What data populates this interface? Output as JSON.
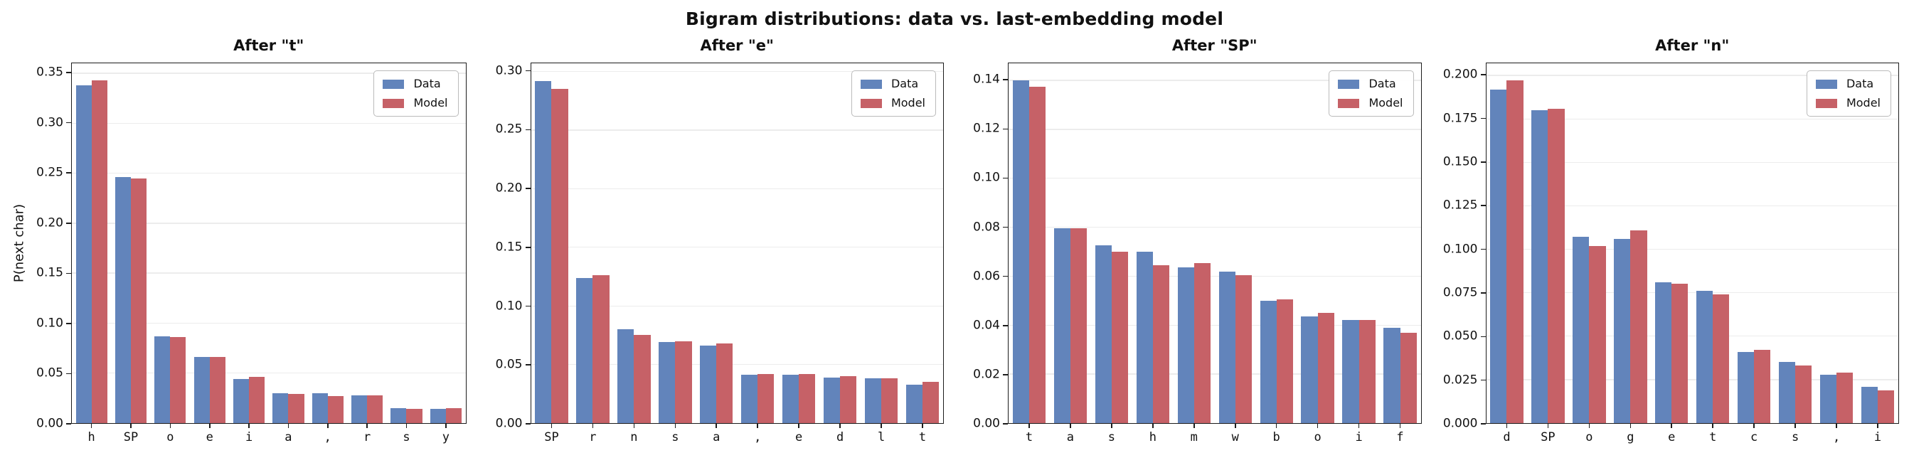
{
  "figure": {
    "title": "Bigram distributions: data vs. last-embedding model"
  },
  "colors": {
    "data_series": "#6284BB",
    "model_series": "#C66167",
    "gridline": "#ececec",
    "axis": "#1c1c1c"
  },
  "legend": {
    "items": [
      "Data",
      "Model"
    ]
  },
  "chart_data": [
    {
      "type": "bar",
      "title": "After \"t\"",
      "ylabel": "P(next char)",
      "grid": true,
      "legend_position": "upper right",
      "categories": [
        "h",
        "SP",
        "o",
        "e",
        "i",
        "a",
        ",",
        "r",
        "s",
        "y"
      ],
      "series": [
        {
          "name": "Data",
          "values": [
            0.338,
            0.246,
            0.087,
            0.066,
            0.044,
            0.03,
            0.03,
            0.028,
            0.015,
            0.014
          ]
        },
        {
          "name": "Model",
          "values": [
            0.343,
            0.245,
            0.086,
            0.066,
            0.046,
            0.029,
            0.027,
            0.028,
            0.014,
            0.015
          ]
        }
      ],
      "ylim": [
        0,
        0.36
      ],
      "ytick_labels": [
        "0.00",
        "0.05",
        "0.10",
        "0.15",
        "0.20",
        "0.25",
        "0.30",
        "0.35"
      ]
    },
    {
      "type": "bar",
      "title": "After \"e\"",
      "ylabel": "",
      "grid": true,
      "legend_position": "upper right",
      "categories": [
        "SP",
        "r",
        "n",
        "s",
        "a",
        ",",
        "e",
        "d",
        "l",
        "t"
      ],
      "series": [
        {
          "name": "Data",
          "values": [
            0.292,
            0.124,
            0.08,
            0.069,
            0.066,
            0.041,
            0.041,
            0.039,
            0.038,
            0.033
          ]
        },
        {
          "name": "Model",
          "values": [
            0.285,
            0.126,
            0.075,
            0.07,
            0.068,
            0.042,
            0.042,
            0.04,
            0.038,
            0.035
          ]
        }
      ],
      "ylim": [
        0,
        0.307
      ],
      "ytick_labels": [
        "0.00",
        "0.05",
        "0.10",
        "0.15",
        "0.20",
        "0.25",
        "0.30"
      ]
    },
    {
      "type": "bar",
      "title": "After \"SP\"",
      "ylabel": "",
      "grid": true,
      "legend_position": "upper right",
      "categories": [
        "t",
        "a",
        "s",
        "h",
        "m",
        "w",
        "b",
        "o",
        "i",
        "f"
      ],
      "series": [
        {
          "name": "Data",
          "values": [
            0.14,
            0.0795,
            0.0725,
            0.07,
            0.0635,
            0.062,
            0.05,
            0.0435,
            0.042,
            0.039
          ]
        },
        {
          "name": "Model",
          "values": [
            0.1375,
            0.0795,
            0.07,
            0.0645,
            0.0655,
            0.0605,
            0.0505,
            0.045,
            0.042,
            0.037
          ]
        }
      ],
      "ylim": [
        0,
        0.147
      ],
      "ytick_labels": [
        "0.00",
        "0.02",
        "0.04",
        "0.06",
        "0.08",
        "0.10",
        "0.12",
        "0.14"
      ]
    },
    {
      "type": "bar",
      "title": "After \"n\"",
      "ylabel": "",
      "grid": true,
      "legend_position": "upper right",
      "categories": [
        "d",
        "SP",
        "o",
        "g",
        "e",
        "t",
        "c",
        "s",
        ",",
        "i"
      ],
      "series": [
        {
          "name": "Data",
          "values": [
            0.192,
            0.18,
            0.107,
            0.106,
            0.081,
            0.076,
            0.041,
            0.035,
            0.028,
            0.021
          ]
        },
        {
          "name": "Model",
          "values": [
            0.197,
            0.181,
            0.102,
            0.111,
            0.08,
            0.074,
            0.042,
            0.033,
            0.029,
            0.019
          ]
        }
      ],
      "ylim": [
        0,
        0.207
      ],
      "ytick_labels": [
        "0.000",
        "0.025",
        "0.050",
        "0.075",
        "0.100",
        "0.125",
        "0.150",
        "0.175",
        "0.200"
      ]
    }
  ]
}
